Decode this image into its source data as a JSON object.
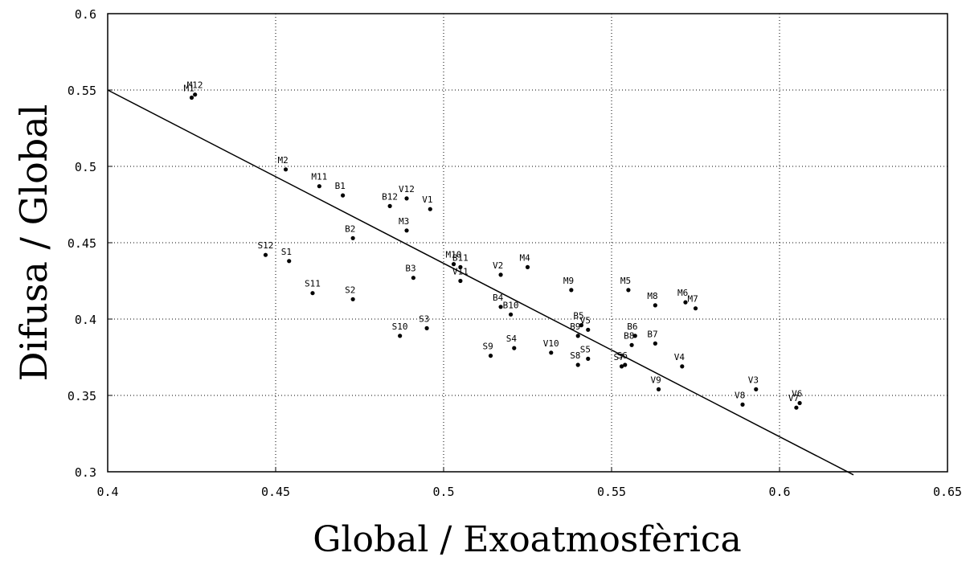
{
  "chart_data": {
    "type": "scatter",
    "title": "",
    "xlabel": "Global / Exoatmosfèrica",
    "ylabel": "Difusa / Global",
    "xlim": [
      0.4,
      0.65
    ],
    "ylim": [
      0.3,
      0.6
    ],
    "x_ticks": [
      "0.4",
      "0.45",
      "0.5",
      "0.55",
      "0.6",
      "0.65"
    ],
    "y_ticks": [
      "0.3",
      "0.35",
      "0.4",
      "0.45",
      "0.5",
      "0.55",
      "0.6"
    ],
    "grid": true,
    "points": [
      {
        "label": "M12",
        "x": 0.426,
        "y": 0.547
      },
      {
        "label": "M1",
        "x": 0.425,
        "y": 0.545
      },
      {
        "label": "M2",
        "x": 0.453,
        "y": 0.498
      },
      {
        "label": "M11",
        "x": 0.463,
        "y": 0.487
      },
      {
        "label": "B1",
        "x": 0.47,
        "y": 0.481
      },
      {
        "label": "B12",
        "x": 0.484,
        "y": 0.474
      },
      {
        "label": "V12",
        "x": 0.489,
        "y": 0.479
      },
      {
        "label": "V1",
        "x": 0.496,
        "y": 0.472
      },
      {
        "label": "M3",
        "x": 0.489,
        "y": 0.458
      },
      {
        "label": "B2",
        "x": 0.473,
        "y": 0.453
      },
      {
        "label": "S12",
        "x": 0.447,
        "y": 0.442
      },
      {
        "label": "S1",
        "x": 0.454,
        "y": 0.438
      },
      {
        "label": "M10",
        "x": 0.503,
        "y": 0.436
      },
      {
        "label": "B11",
        "x": 0.505,
        "y": 0.434
      },
      {
        "label": "V11",
        "x": 0.505,
        "y": 0.425
      },
      {
        "label": "B3",
        "x": 0.491,
        "y": 0.427
      },
      {
        "label": "V2",
        "x": 0.517,
        "y": 0.429
      },
      {
        "label": "M4",
        "x": 0.525,
        "y": 0.434
      },
      {
        "label": "S11",
        "x": 0.461,
        "y": 0.417
      },
      {
        "label": "S2",
        "x": 0.473,
        "y": 0.413
      },
      {
        "label": "M9",
        "x": 0.538,
        "y": 0.419
      },
      {
        "label": "M5",
        "x": 0.555,
        "y": 0.419
      },
      {
        "label": "M8",
        "x": 0.563,
        "y": 0.409
      },
      {
        "label": "M6",
        "x": 0.572,
        "y": 0.411
      },
      {
        "label": "M7",
        "x": 0.575,
        "y": 0.407
      },
      {
        "label": "B4",
        "x": 0.517,
        "y": 0.408
      },
      {
        "label": "B10",
        "x": 0.52,
        "y": 0.403
      },
      {
        "label": "S10",
        "x": 0.487,
        "y": 0.389
      },
      {
        "label": "S3",
        "x": 0.495,
        "y": 0.394
      },
      {
        "label": "B5",
        "x": 0.541,
        "y": 0.396
      },
      {
        "label": "V5",
        "x": 0.543,
        "y": 0.393
      },
      {
        "label": "B9",
        "x": 0.54,
        "y": 0.389
      },
      {
        "label": "B6",
        "x": 0.557,
        "y": 0.389
      },
      {
        "label": "B8",
        "x": 0.556,
        "y": 0.383
      },
      {
        "label": "B7",
        "x": 0.563,
        "y": 0.384
      },
      {
        "label": "S4",
        "x": 0.521,
        "y": 0.381
      },
      {
        "label": "S9",
        "x": 0.514,
        "y": 0.376
      },
      {
        "label": "V10",
        "x": 0.532,
        "y": 0.378
      },
      {
        "label": "S5",
        "x": 0.543,
        "y": 0.374
      },
      {
        "label": "S8",
        "x": 0.54,
        "y": 0.37
      },
      {
        "label": "S6",
        "x": 0.554,
        "y": 0.37
      },
      {
        "label": "S7",
        "x": 0.553,
        "y": 0.369
      },
      {
        "label": "V4",
        "x": 0.571,
        "y": 0.369
      },
      {
        "label": "V9",
        "x": 0.564,
        "y": 0.354
      },
      {
        "label": "V3",
        "x": 0.593,
        "y": 0.354
      },
      {
        "label": "V8",
        "x": 0.589,
        "y": 0.344
      },
      {
        "label": "V6",
        "x": 0.606,
        "y": 0.345
      },
      {
        "label": "V7",
        "x": 0.605,
        "y": 0.342
      }
    ],
    "fit_line": {
      "x": [
        0.4,
        0.622
      ],
      "y": [
        0.55,
        0.298
      ]
    }
  }
}
